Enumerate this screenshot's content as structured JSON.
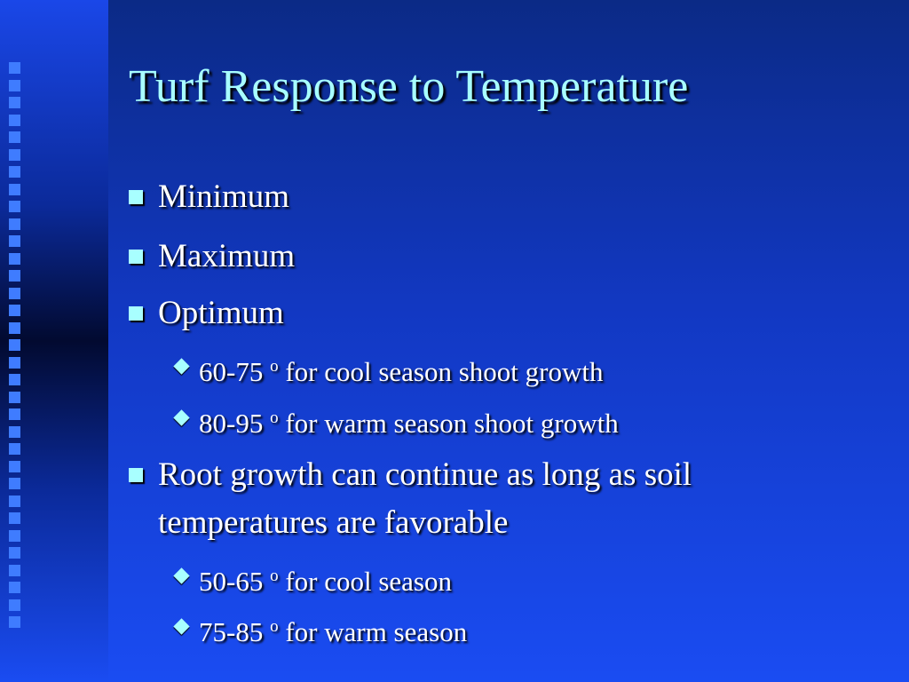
{
  "title": "Turf Response to Temperature",
  "bullets": [
    {
      "text": "Minimum"
    },
    {
      "text": "Maximum"
    },
    {
      "text": "Optimum",
      "sub": [
        {
          "range": "60-75",
          "degree": "o",
          "text": "for cool season shoot growth"
        },
        {
          "range": "80-95",
          "degree": "o",
          "text": "for warm season shoot growth"
        }
      ]
    },
    {
      "text": "Root growth can continue as long as soil temperatures are favorable",
      "sub": [
        {
          "range": "50-65",
          "degree": "o",
          "text": "for cool season"
        },
        {
          "range": "75-85",
          "degree": "o",
          "text": "for warm season"
        }
      ]
    }
  ]
}
